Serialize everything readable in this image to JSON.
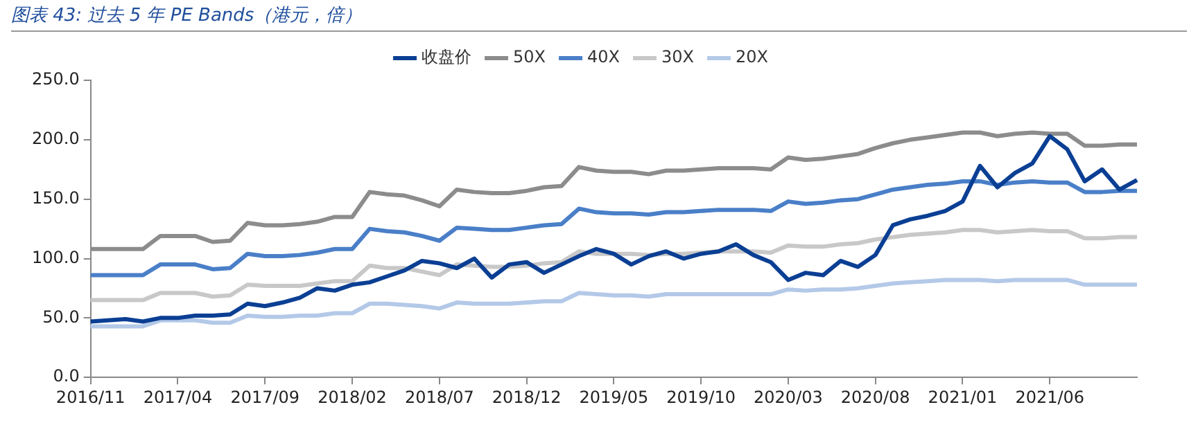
{
  "chart_data": {
    "type": "line",
    "title": "图表 43:  过去 5 年 PE Bands（港元，倍）",
    "categories": [
      "2016/11",
      null,
      null,
      null,
      null,
      "2017/04",
      null,
      null,
      null,
      null,
      "2017/09",
      null,
      null,
      null,
      null,
      "2018/02",
      null,
      null,
      null,
      null,
      "2018/07",
      null,
      null,
      null,
      null,
      "2018/12",
      null,
      null,
      null,
      null,
      "2019/05",
      null,
      null,
      null,
      null,
      "2019/10",
      null,
      null,
      null,
      null,
      "2020/03",
      null,
      null,
      null,
      null,
      "2020/08",
      null,
      null,
      null,
      null,
      "2021/01",
      null,
      null,
      null,
      null,
      "2021/06",
      null,
      null,
      null,
      null,
      null
    ],
    "series": [
      {
        "name": "收盘价",
        "color": "#0b3f94",
        "values": [
          47,
          48,
          49,
          47,
          50,
          50,
          52,
          52,
          53,
          62,
          60,
          63,
          67,
          75,
          73,
          78,
          80,
          85,
          90,
          98,
          96,
          92,
          100,
          84,
          95,
          97,
          88,
          95,
          102,
          108,
          104,
          95,
          102,
          106,
          100,
          104,
          106,
          112,
          103,
          97,
          82,
          88,
          86,
          98,
          93,
          103,
          128,
          133,
          136,
          140,
          148,
          178,
          160,
          172,
          180,
          203,
          192,
          165,
          175,
          158,
          166
        ]
      },
      {
        "name": "50X",
        "color": "#8c8c8c",
        "values": [
          108,
          108,
          108,
          108,
          119,
          119,
          119,
          114,
          115,
          130,
          128,
          128,
          129,
          131,
          135,
          135,
          156,
          154,
          153,
          149,
          144,
          158,
          156,
          155,
          155,
          157,
          160,
          161,
          177,
          174,
          173,
          173,
          171,
          174,
          174,
          175,
          176,
          176,
          176,
          175,
          185,
          183,
          184,
          186,
          188,
          193,
          197,
          200,
          202,
          204,
          206,
          206,
          203,
          205,
          206,
          205,
          205,
          195,
          195,
          196,
          196
        ]
      },
      {
        "name": "40X",
        "color": "#4a7fc8",
        "values": [
          86,
          86,
          86,
          86,
          95,
          95,
          95,
          91,
          92,
          104,
          102,
          102,
          103,
          105,
          108,
          108,
          125,
          123,
          122,
          119,
          115,
          126,
          125,
          124,
          124,
          126,
          128,
          129,
          142,
          139,
          138,
          138,
          137,
          139,
          139,
          140,
          141,
          141,
          141,
          140,
          148,
          146,
          147,
          149,
          150,
          154,
          158,
          160,
          162,
          163,
          165,
          165,
          162,
          164,
          165,
          164,
          164,
          156,
          156,
          157,
          157
        ]
      },
      {
        "name": "30X",
        "color": "#c8c8c8",
        "values": [
          65,
          65,
          65,
          65,
          71,
          71,
          71,
          68,
          69,
          78,
          77,
          77,
          77,
          79,
          81,
          81,
          94,
          92,
          92,
          89,
          86,
          95,
          94,
          93,
          93,
          94,
          96,
          97,
          106,
          104,
          104,
          104,
          103,
          104,
          104,
          105,
          106,
          106,
          106,
          105,
          111,
          110,
          110,
          112,
          113,
          116,
          118,
          120,
          121,
          122,
          124,
          124,
          122,
          123,
          124,
          123,
          123,
          117,
          117,
          118,
          118
        ]
      },
      {
        "name": "20X",
        "color": "#b4c9e8",
        "values": [
          43,
          43,
          43,
          43,
          48,
          48,
          48,
          46,
          46,
          52,
          51,
          51,
          52,
          52,
          54,
          54,
          62,
          62,
          61,
          60,
          58,
          63,
          62,
          62,
          62,
          63,
          64,
          64,
          71,
          70,
          69,
          69,
          68,
          70,
          70,
          70,
          70,
          70,
          70,
          70,
          74,
          73,
          74,
          74,
          75,
          77,
          79,
          80,
          81,
          82,
          82,
          82,
          81,
          82,
          82,
          82,
          82,
          78,
          78,
          78,
          78
        ]
      }
    ],
    "ylim": [
      0,
      250
    ],
    "yticks": [
      {
        "value": 0,
        "label": "0.0"
      },
      {
        "value": 50,
        "label": "50.0"
      },
      {
        "value": 100,
        "label": "100.0"
      },
      {
        "value": 150,
        "label": "150.0"
      },
      {
        "value": 200,
        "label": "200.0"
      },
      {
        "value": 250,
        "label": "250.0"
      }
    ],
    "grid": false,
    "legend": "top",
    "marker": "none",
    "line_style": "solid"
  }
}
